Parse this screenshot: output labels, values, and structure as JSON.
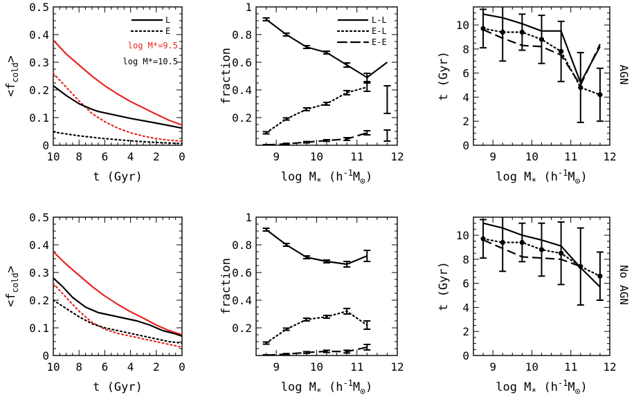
{
  "colors": {
    "red": "#e8231e",
    "black": "#000000"
  },
  "row_labels": [
    "AGN",
    "No AGN"
  ],
  "chart_data": [
    {
      "id": "top-left",
      "type": "line",
      "xlabel": "t (Gyr)",
      "ylabel_main": "<f",
      "ylabel_sub": "cold",
      "ylabel_end": ">",
      "xlim": [
        10,
        0
      ],
      "ylim": [
        0,
        0.5
      ],
      "xticks": [
        10,
        8,
        6,
        4,
        2,
        0
      ],
      "yticks": [
        0,
        0.1,
        0.2,
        0.3,
        0.4,
        0.5
      ],
      "legend": {
        "position": "top-right",
        "styles": [
          {
            "label": "L",
            "dash": "solid"
          },
          {
            "label": "E",
            "dash": "dotted"
          }
        ],
        "masses": [
          {
            "label": "log M*=9.5",
            "color": "#e8231e"
          },
          {
            "label": "log M*=10.5",
            "color": "#000000"
          }
        ]
      },
      "series": [
        {
          "color": "#e8231e",
          "dash": "solid",
          "x": [
            10,
            9,
            8,
            7,
            6,
            5,
            4,
            3,
            2,
            1,
            0
          ],
          "y": [
            0.38,
            0.33,
            0.29,
            0.25,
            0.215,
            0.185,
            0.158,
            0.135,
            0.112,
            0.09,
            0.073
          ]
        },
        {
          "color": "#e8231e",
          "dash": "dotted",
          "x": [
            10,
            9,
            8,
            7,
            6,
            5,
            4,
            3,
            2,
            1,
            0
          ],
          "y": [
            0.26,
            0.21,
            0.16,
            0.115,
            0.085,
            0.062,
            0.045,
            0.033,
            0.024,
            0.018,
            0.015
          ]
        },
        {
          "color": "#000000",
          "dash": "solid",
          "x": [
            10,
            9,
            8,
            7,
            6.5,
            6,
            4,
            2,
            0
          ],
          "y": [
            0.215,
            0.18,
            0.15,
            0.13,
            0.122,
            0.117,
            0.097,
            0.08,
            0.062
          ]
        },
        {
          "color": "#000000",
          "dash": "dotted",
          "x": [
            10,
            8,
            6,
            4,
            2,
            0
          ],
          "y": [
            0.048,
            0.034,
            0.024,
            0.016,
            0.01,
            0.006
          ]
        }
      ]
    },
    {
      "id": "top-middle",
      "type": "line",
      "xlabel": "log M* (h-1M⊙)",
      "ylabel": "fraction",
      "xlim": [
        8.5,
        12
      ],
      "ylim": [
        0,
        1
      ],
      "xticks": [
        9,
        10,
        11,
        12
      ],
      "yticks": [
        0.2,
        0.4,
        0.6,
        0.8,
        1
      ],
      "yticklabels": [
        "0.2",
        "0.4",
        "0.6",
        "0.8",
        "1"
      ],
      "legend": {
        "position": "top-right",
        "styles": [
          {
            "label": "L-L",
            "dash": "solid"
          },
          {
            "label": "E-L",
            "dash": "dotted"
          },
          {
            "label": "E-E",
            "dash": "dashed"
          }
        ]
      },
      "series": [
        {
          "name": "L-L",
          "dash": "solid",
          "x": [
            8.75,
            9.25,
            9.75,
            10.25,
            10.75,
            11.25,
            11.75
          ],
          "y": [
            0.91,
            0.8,
            0.71,
            0.67,
            0.58,
            0.49,
            0.6
          ],
          "err": [
            0.01,
            0.01,
            0.01,
            0.01,
            0.015,
            0.03,
            0.0
          ]
        },
        {
          "name": "E-L",
          "dash": "dotted",
          "x": [
            8.75,
            9.25,
            9.75,
            10.25,
            10.75,
            11.25
          ],
          "y": [
            0.09,
            0.19,
            0.26,
            0.3,
            0.38,
            0.42
          ],
          "err": [
            0.008,
            0.008,
            0.01,
            0.01,
            0.015,
            0.03
          ]
        },
        {
          "name": "E-E",
          "dash": "dashed",
          "x": [
            8.75,
            9.25,
            9.75,
            10.25,
            10.75,
            11.25
          ],
          "y": [
            0.002,
            0.01,
            0.022,
            0.034,
            0.045,
            0.09
          ],
          "err": [
            0.003,
            0.004,
            0.005,
            0.006,
            0.01,
            0.015
          ]
        }
      ],
      "outlier_errorbars": [
        {
          "x": 11.75,
          "y": 0.33,
          "err": 0.1
        },
        {
          "x": 11.75,
          "y": 0.07,
          "err": 0.04
        }
      ]
    },
    {
      "id": "top-right",
      "type": "line",
      "xlabel": "log M* (h-1M⊙)",
      "ylabel": "t (Gyr)",
      "xlim": [
        8.5,
        12
      ],
      "ylim": [
        0,
        11.5
      ],
      "xticks": [
        9,
        10,
        11,
        12
      ],
      "yticks": [
        0,
        2,
        4,
        6,
        8,
        10
      ],
      "series": [
        {
          "dash": "solid",
          "x": [
            8.75,
            9.25,
            9.75,
            10.25,
            10.75,
            11.25,
            11.75
          ],
          "y": [
            10.9,
            10.6,
            10.1,
            9.5,
            9.5,
            5.2,
            8.2
          ]
        },
        {
          "dash": "dotted",
          "x": [
            8.75,
            9.25,
            9.75,
            10.25,
            10.75,
            11.25,
            11.75
          ],
          "y": [
            9.7,
            9.4,
            9.4,
            8.8,
            7.8,
            4.8,
            4.2
          ],
          "markers": true,
          "err": [
            1.6,
            2.4,
            1.5,
            2.0,
            2.5,
            2.9,
            2.2
          ]
        },
        {
          "dash": "dashed",
          "x": [
            8.75,
            9.25,
            9.75,
            10.25,
            10.75,
            11.25,
            11.75
          ],
          "y": [
            9.6,
            8.9,
            8.3,
            8.2,
            7.5,
            5.0,
            8.4
          ]
        }
      ]
    },
    {
      "id": "bottom-left",
      "type": "line",
      "xlabel": "t (Gyr)",
      "ylabel_main": "<f",
      "ylabel_sub": "cold",
      "ylabel_end": ">",
      "xlim": [
        10,
        0
      ],
      "ylim": [
        0,
        0.5
      ],
      "xticks": [
        10,
        8,
        6,
        4,
        2,
        0
      ],
      "yticks": [
        0,
        0.1,
        0.2,
        0.3,
        0.4,
        0.5
      ],
      "series": [
        {
          "color": "#e8231e",
          "dash": "solid",
          "x": [
            10,
            9,
            8,
            7,
            6,
            5,
            4,
            3,
            2,
            1,
            0
          ],
          "y": [
            0.375,
            0.33,
            0.29,
            0.25,
            0.215,
            0.185,
            0.158,
            0.135,
            0.11,
            0.09,
            0.075
          ]
        },
        {
          "color": "#e8231e",
          "dash": "dotted",
          "x": [
            10,
            9,
            8,
            7,
            6,
            5,
            4,
            3,
            2,
            1,
            0
          ],
          "y": [
            0.26,
            0.21,
            0.16,
            0.12,
            0.095,
            0.08,
            0.07,
            0.06,
            0.05,
            0.04,
            0.03
          ]
        },
        {
          "color": "#000000",
          "dash": "solid",
          "x": [
            10,
            9.3,
            8.5,
            7.5,
            6.5,
            5,
            3.5,
            2.5,
            1.5,
            0.5,
            0
          ],
          "y": [
            0.28,
            0.25,
            0.21,
            0.175,
            0.155,
            0.14,
            0.125,
            0.11,
            0.09,
            0.078,
            0.07
          ]
        },
        {
          "color": "#000000",
          "dash": "dotted",
          "x": [
            10,
            9,
            8,
            7,
            6,
            5,
            4,
            3,
            2,
            1,
            0
          ],
          "y": [
            0.2,
            0.17,
            0.14,
            0.115,
            0.1,
            0.09,
            0.08,
            0.07,
            0.06,
            0.05,
            0.045
          ]
        }
      ]
    },
    {
      "id": "bottom-middle",
      "type": "line",
      "xlabel": "log M* (h-1M⊙)",
      "ylabel": "fraction",
      "xlim": [
        8.5,
        12
      ],
      "ylim": [
        0,
        1
      ],
      "xticks": [
        9,
        10,
        11,
        12
      ],
      "yticks": [
        0.2,
        0.4,
        0.6,
        0.8,
        1
      ],
      "yticklabels": [
        "0.2",
        "0.4",
        "0.6",
        "0.8",
        "1"
      ],
      "series": [
        {
          "name": "L-L",
          "dash": "solid",
          "x": [
            8.75,
            9.25,
            9.75,
            10.25,
            10.75,
            11.25
          ],
          "y": [
            0.91,
            0.8,
            0.71,
            0.68,
            0.66,
            0.72
          ],
          "err": [
            0.01,
            0.01,
            0.01,
            0.01,
            0.02,
            0.04
          ]
        },
        {
          "name": "E-L",
          "dash": "dotted",
          "x": [
            8.75,
            9.25,
            9.75,
            10.25,
            10.75,
            11.25
          ],
          "y": [
            0.09,
            0.19,
            0.26,
            0.28,
            0.32,
            0.22
          ],
          "err": [
            0.008,
            0.008,
            0.01,
            0.01,
            0.02,
            0.03
          ]
        },
        {
          "name": "E-E",
          "dash": "dashed",
          "x": [
            8.75,
            9.25,
            9.75,
            10.25,
            10.75,
            11.25
          ],
          "y": [
            0.002,
            0.01,
            0.022,
            0.03,
            0.028,
            0.06
          ],
          "err": [
            0.003,
            0.004,
            0.006,
            0.008,
            0.01,
            0.02
          ]
        }
      ]
    },
    {
      "id": "bottom-right",
      "type": "line",
      "xlabel": "log M* (h-1M⊙)",
      "ylabel": "t (Gyr)",
      "xlim": [
        8.5,
        12
      ],
      "ylim": [
        0,
        11.5
      ],
      "xticks": [
        9,
        10,
        11,
        12
      ],
      "yticks": [
        0,
        2,
        4,
        6,
        8,
        10
      ],
      "series": [
        {
          "dash": "solid",
          "x": [
            8.75,
            9.25,
            9.75,
            10.25,
            10.75,
            11.25,
            11.75
          ],
          "y": [
            11.0,
            10.6,
            10.0,
            9.6,
            9.1,
            7.3,
            5.7
          ]
        },
        {
          "dash": "dotted",
          "x": [
            8.75,
            9.25,
            9.75,
            10.25,
            10.75,
            11.25,
            11.75
          ],
          "y": [
            9.7,
            9.4,
            9.4,
            8.8,
            8.5,
            7.4,
            6.6
          ],
          "markers": true,
          "err": [
            1.6,
            2.4,
            1.6,
            2.2,
            2.6,
            3.2,
            2.0
          ]
        },
        {
          "dash": "dashed",
          "x": [
            8.75,
            9.25,
            9.75,
            10.25,
            10.75,
            11.25
          ],
          "y": [
            9.6,
            8.9,
            8.2,
            8.1,
            8.0,
            7.4
          ]
        }
      ]
    }
  ]
}
